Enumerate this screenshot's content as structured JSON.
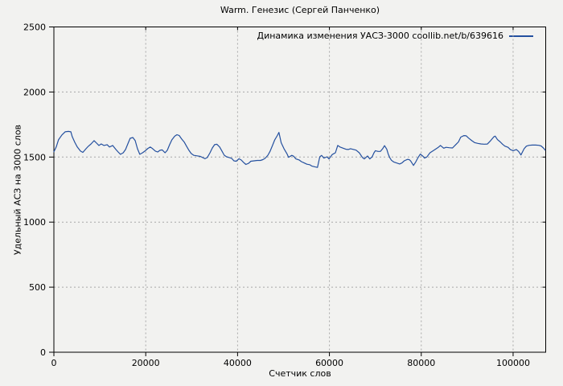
{
  "chart_data": {
    "type": "line",
    "title": "Warm. Генезис (Сергей Панченко)",
    "xlabel": "Счетчик слов",
    "ylabel": "Удельный АСЗ на 3000 слов",
    "xlim": [
      0,
      107100
    ],
    "ylim": [
      0,
      2500
    ],
    "xticks": [
      0,
      20000,
      40000,
      60000,
      80000,
      100000
    ],
    "xtick_labels": [
      "0",
      "20000",
      "40000",
      "60000",
      "80000",
      "100000"
    ],
    "yticks": [
      0,
      500,
      1000,
      1500,
      2000,
      2500
    ],
    "ytick_labels": [
      "0",
      "500",
      "1000",
      "1500",
      "2000",
      "2500"
    ],
    "grid": true,
    "grid_color": "#a8a8a8",
    "background": "#f2f2f0",
    "legend_position": "top-right-inside",
    "series": [
      {
        "name": "Динамика изменения УАСЗ-3000 coollib.net/b/639616",
        "color": "#24509f",
        "points": [
          [
            0,
            1540
          ],
          [
            500,
            1577
          ],
          [
            1000,
            1632
          ],
          [
            1750,
            1670
          ],
          [
            2450,
            1694
          ],
          [
            3150,
            1697
          ],
          [
            3700,
            1694
          ],
          [
            4000,
            1657
          ],
          [
            4550,
            1613
          ],
          [
            5100,
            1577
          ],
          [
            5800,
            1546
          ],
          [
            6300,
            1536
          ],
          [
            7000,
            1564
          ],
          [
            7500,
            1583
          ],
          [
            8100,
            1601
          ],
          [
            8750,
            1626
          ],
          [
            9300,
            1607
          ],
          [
            9800,
            1589
          ],
          [
            10300,
            1601
          ],
          [
            10900,
            1589
          ],
          [
            11600,
            1595
          ],
          [
            12100,
            1577
          ],
          [
            12800,
            1589
          ],
          [
            13500,
            1558
          ],
          [
            14000,
            1539
          ],
          [
            14500,
            1521
          ],
          [
            15100,
            1533
          ],
          [
            15600,
            1558
          ],
          [
            16100,
            1601
          ],
          [
            16600,
            1644
          ],
          [
            17200,
            1650
          ],
          [
            17700,
            1626
          ],
          [
            18200,
            1564
          ],
          [
            18700,
            1521
          ],
          [
            19300,
            1533
          ],
          [
            19800,
            1546
          ],
          [
            20500,
            1567
          ],
          [
            21000,
            1577
          ],
          [
            21500,
            1564
          ],
          [
            22100,
            1546
          ],
          [
            22600,
            1539
          ],
          [
            23100,
            1552
          ],
          [
            23600,
            1555
          ],
          [
            24200,
            1533
          ],
          [
            24700,
            1552
          ],
          [
            25200,
            1595
          ],
          [
            25700,
            1632
          ],
          [
            26300,
            1660
          ],
          [
            26800,
            1672
          ],
          [
            27300,
            1665
          ],
          [
            27800,
            1640
          ],
          [
            28400,
            1614
          ],
          [
            28900,
            1583
          ],
          [
            29400,
            1552
          ],
          [
            29900,
            1527
          ],
          [
            30500,
            1513
          ],
          [
            31200,
            1509
          ],
          [
            31900,
            1505
          ],
          [
            32400,
            1496
          ],
          [
            32900,
            1487
          ],
          [
            33400,
            1496
          ],
          [
            34000,
            1533
          ],
          [
            34500,
            1570
          ],
          [
            35000,
            1595
          ],
          [
            35500,
            1598
          ],
          [
            36100,
            1577
          ],
          [
            36600,
            1546
          ],
          [
            37100,
            1514
          ],
          [
            37600,
            1502
          ],
          [
            38200,
            1496
          ],
          [
            38700,
            1490
          ],
          [
            39200,
            1471
          ],
          [
            39700,
            1468
          ],
          [
            40300,
            1487
          ],
          [
            40800,
            1477
          ],
          [
            41300,
            1459
          ],
          [
            41800,
            1443
          ],
          [
            42400,
            1452
          ],
          [
            42900,
            1468
          ],
          [
            43600,
            1471
          ],
          [
            44300,
            1474
          ],
          [
            45000,
            1474
          ],
          [
            45500,
            1480
          ],
          [
            46000,
            1490
          ],
          [
            46600,
            1514
          ],
          [
            47100,
            1546
          ],
          [
            47600,
            1589
          ],
          [
            48100,
            1632
          ],
          [
            48700,
            1669
          ],
          [
            49000,
            1690
          ],
          [
            49500,
            1610
          ],
          [
            50100,
            1564
          ],
          [
            50800,
            1523
          ],
          [
            51100,
            1498
          ],
          [
            51800,
            1513
          ],
          [
            52200,
            1507
          ],
          [
            52700,
            1486
          ],
          [
            53400,
            1478
          ],
          [
            53900,
            1465
          ],
          [
            54400,
            1457
          ],
          [
            55100,
            1445
          ],
          [
            55700,
            1441
          ],
          [
            56200,
            1430
          ],
          [
            56900,
            1424
          ],
          [
            57400,
            1420
          ],
          [
            57900,
            1502
          ],
          [
            58300,
            1513
          ],
          [
            58800,
            1492
          ],
          [
            59500,
            1502
          ],
          [
            59900,
            1486
          ],
          [
            60600,
            1519
          ],
          [
            61300,
            1533
          ],
          [
            61800,
            1589
          ],
          [
            62300,
            1577
          ],
          [
            63000,
            1568
          ],
          [
            63600,
            1560
          ],
          [
            64100,
            1558
          ],
          [
            64600,
            1564
          ],
          [
            65300,
            1558
          ],
          [
            65800,
            1553
          ],
          [
            66500,
            1533
          ],
          [
            67200,
            1496
          ],
          [
            67600,
            1486
          ],
          [
            68300,
            1508
          ],
          [
            68800,
            1486
          ],
          [
            69300,
            1502
          ],
          [
            69700,
            1533
          ],
          [
            70000,
            1549
          ],
          [
            70600,
            1543
          ],
          [
            71100,
            1543
          ],
          [
            71600,
            1564
          ],
          [
            72000,
            1588
          ],
          [
            72500,
            1560
          ],
          [
            72800,
            1523
          ],
          [
            73200,
            1492
          ],
          [
            73500,
            1475
          ],
          [
            74000,
            1462
          ],
          [
            74600,
            1455
          ],
          [
            75300,
            1447
          ],
          [
            75800,
            1455
          ],
          [
            76300,
            1471
          ],
          [
            77000,
            1482
          ],
          [
            77400,
            1480
          ],
          [
            77700,
            1470
          ],
          [
            78300,
            1436
          ],
          [
            78800,
            1462
          ],
          [
            79300,
            1496
          ],
          [
            79800,
            1523
          ],
          [
            80400,
            1505
          ],
          [
            80700,
            1492
          ],
          [
            81200,
            1500
          ],
          [
            81900,
            1533
          ],
          [
            82800,
            1554
          ],
          [
            83700,
            1575
          ],
          [
            84200,
            1589
          ],
          [
            84900,
            1568
          ],
          [
            85400,
            1575
          ],
          [
            86100,
            1572
          ],
          [
            86800,
            1570
          ],
          [
            87500,
            1595
          ],
          [
            88100,
            1616
          ],
          [
            88600,
            1653
          ],
          [
            89300,
            1665
          ],
          [
            89800,
            1663
          ],
          [
            90300,
            1646
          ],
          [
            91000,
            1626
          ],
          [
            91600,
            1611
          ],
          [
            92300,
            1605
          ],
          [
            93000,
            1601
          ],
          [
            93700,
            1599
          ],
          [
            94400,
            1600
          ],
          [
            95100,
            1626
          ],
          [
            95800,
            1656
          ],
          [
            96100,
            1661
          ],
          [
            96600,
            1634
          ],
          [
            97200,
            1616
          ],
          [
            97700,
            1599
          ],
          [
            98200,
            1584
          ],
          [
            98900,
            1575
          ],
          [
            99400,
            1558
          ],
          [
            100000,
            1549
          ],
          [
            100700,
            1558
          ],
          [
            101200,
            1543
          ],
          [
            101700,
            1516
          ],
          [
            102400,
            1564
          ],
          [
            102900,
            1584
          ],
          [
            103500,
            1590
          ],
          [
            104200,
            1592
          ],
          [
            104900,
            1592
          ],
          [
            105600,
            1590
          ],
          [
            106100,
            1585
          ],
          [
            106600,
            1570
          ],
          [
            107000,
            1553
          ]
        ]
      }
    ]
  }
}
